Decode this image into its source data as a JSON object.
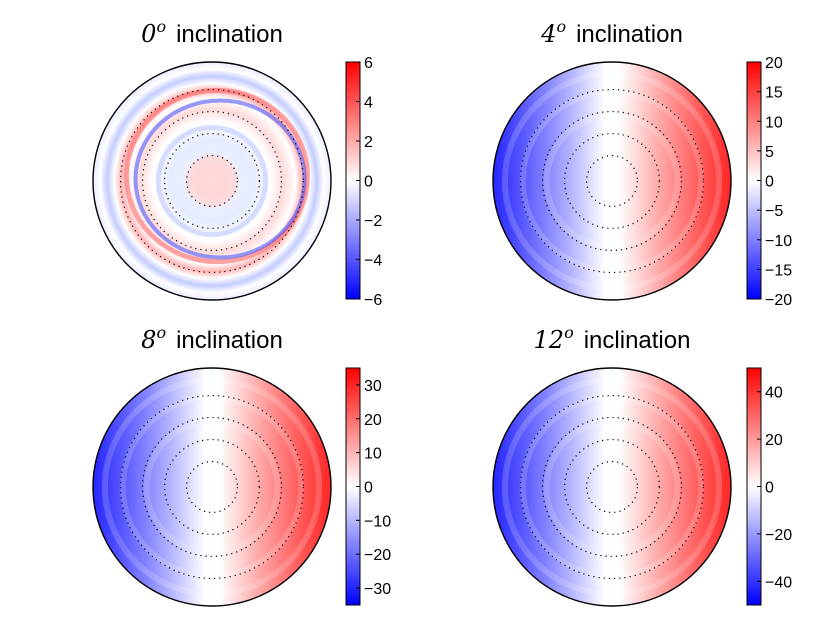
{
  "colors": {
    "negative": "#0000ff",
    "neutral": "#ffffff",
    "positive": "#ff0000"
  },
  "chart_data": [
    {
      "type": "heatmap",
      "subtype": "polar-disk",
      "title_value": "0",
      "title_superscript": "o",
      "title_text": "inclination",
      "colorbar_range": [
        -6,
        6
      ],
      "colorbar_ticks": [
        6,
        4,
        2,
        0,
        -2,
        -4,
        -6
      ],
      "colorbar_tick_labels": [
        "6",
        "4",
        "2",
        "0",
        "−2",
        "−4",
        "−6"
      ],
      "pattern": "rings",
      "dotted_circles": 4
    },
    {
      "type": "heatmap",
      "subtype": "polar-disk",
      "title_value": "4",
      "title_superscript": "o",
      "title_text": "inclination",
      "colorbar_range": [
        -20,
        20
      ],
      "colorbar_ticks": [
        20,
        15,
        10,
        5,
        0,
        -5,
        -10,
        -15,
        -20
      ],
      "colorbar_tick_labels": [
        "20",
        "15",
        "10",
        "5",
        "0",
        "−5",
        "−10",
        "−15",
        "−20"
      ],
      "pattern": "dipole",
      "dotted_circles": 4
    },
    {
      "type": "heatmap",
      "subtype": "polar-disk",
      "title_value": "8",
      "title_superscript": "o",
      "title_text": "inclination",
      "colorbar_range": [
        -35,
        35
      ],
      "colorbar_ticks": [
        30,
        20,
        10,
        0,
        -10,
        -20,
        -30
      ],
      "colorbar_tick_labels": [
        "30",
        "20",
        "10",
        "0",
        "−10",
        "−20",
        "−30"
      ],
      "pattern": "dipole",
      "dotted_circles": 4
    },
    {
      "type": "heatmap",
      "subtype": "polar-disk",
      "title_value": "12",
      "title_superscript": "o",
      "title_text": "inclination",
      "colorbar_range": [
        -50,
        50
      ],
      "colorbar_ticks": [
        40,
        20,
        0,
        -20,
        -40
      ],
      "colorbar_tick_labels": [
        "40",
        "20",
        "0",
        "−20",
        "−40"
      ],
      "pattern": "dipole",
      "dotted_circles": 4
    }
  ]
}
